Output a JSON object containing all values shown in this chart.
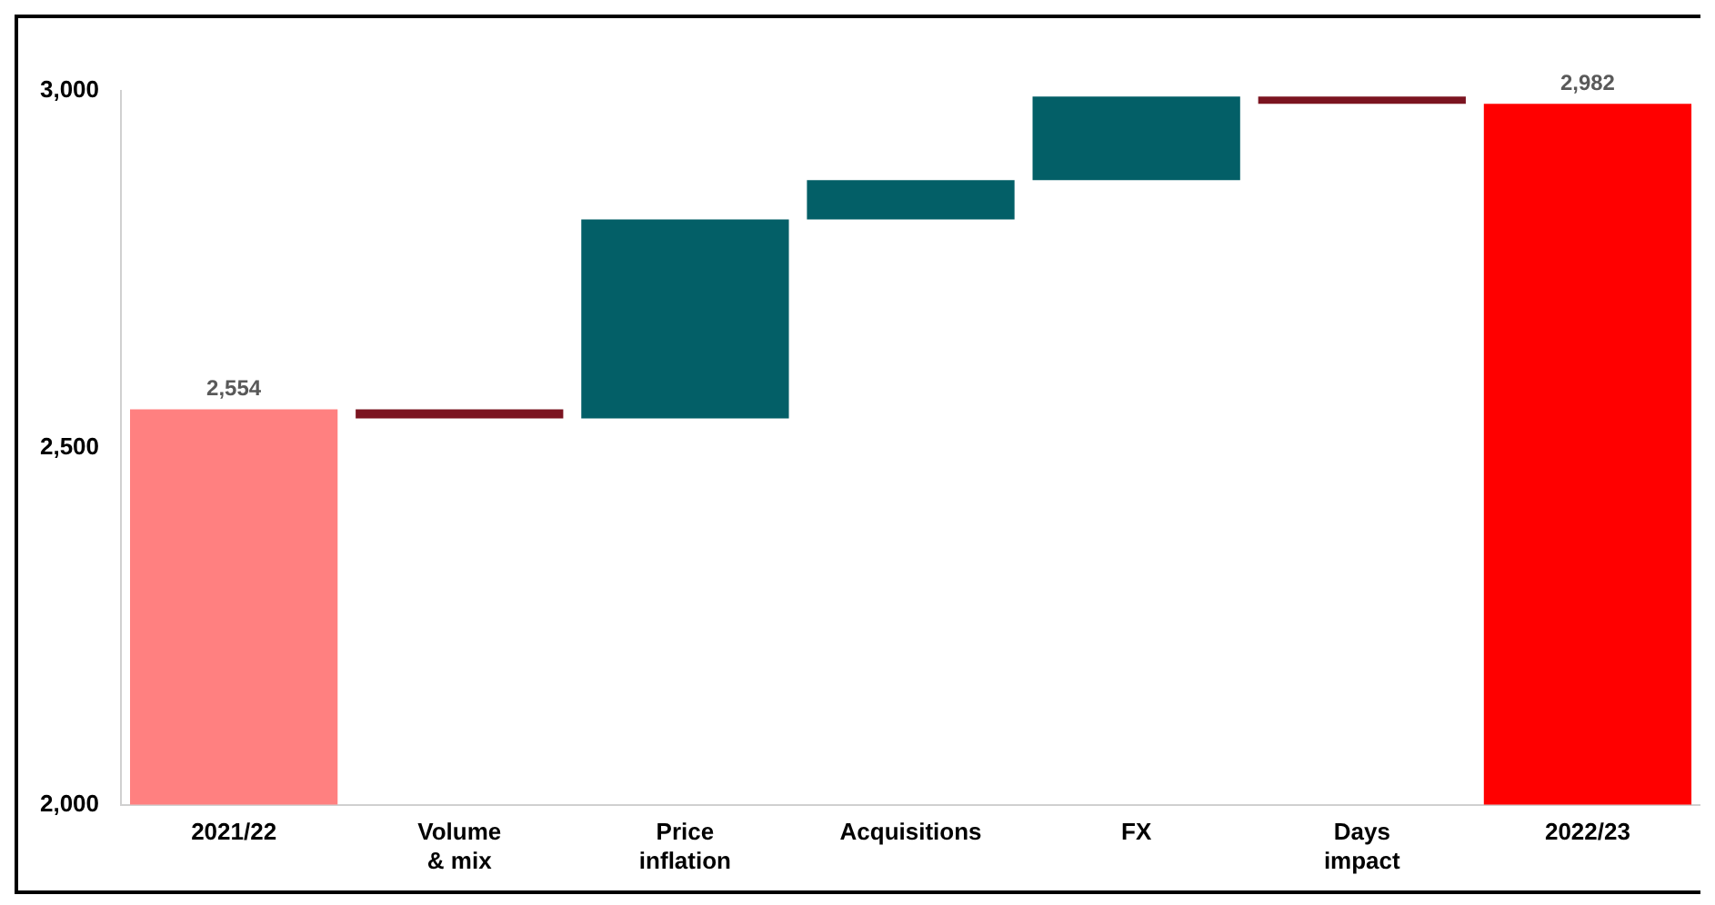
{
  "chart_data": {
    "type": "bar",
    "categories": [
      "2021/22",
      "Volume & mix",
      "Price inflation",
      "Acquisitions",
      "FX",
      "Days impact",
      "2022/23"
    ],
    "values": [
      2554,
      -13,
      279,
      55,
      117,
      -10,
      2982
    ],
    "base": [
      null,
      2554,
      2541,
      2820,
      2875,
      2992,
      null
    ],
    "colors": [
      "#ff8080",
      "#7b1420",
      "#035f67",
      "#035f67",
      "#035f67",
      "#7b1420",
      "#ff0000"
    ],
    "value_labels": [
      "2,554",
      null,
      null,
      null,
      null,
      null,
      "2,982"
    ],
    "ylim": [
      2000,
      3000
    ],
    "yticks": [
      {
        "value": 2000,
        "label": "2,000"
      },
      {
        "value": 2500,
        "label": "2,500"
      },
      {
        "value": 3000,
        "label": "3,000"
      }
    ],
    "grid": false,
    "legend": false
  }
}
